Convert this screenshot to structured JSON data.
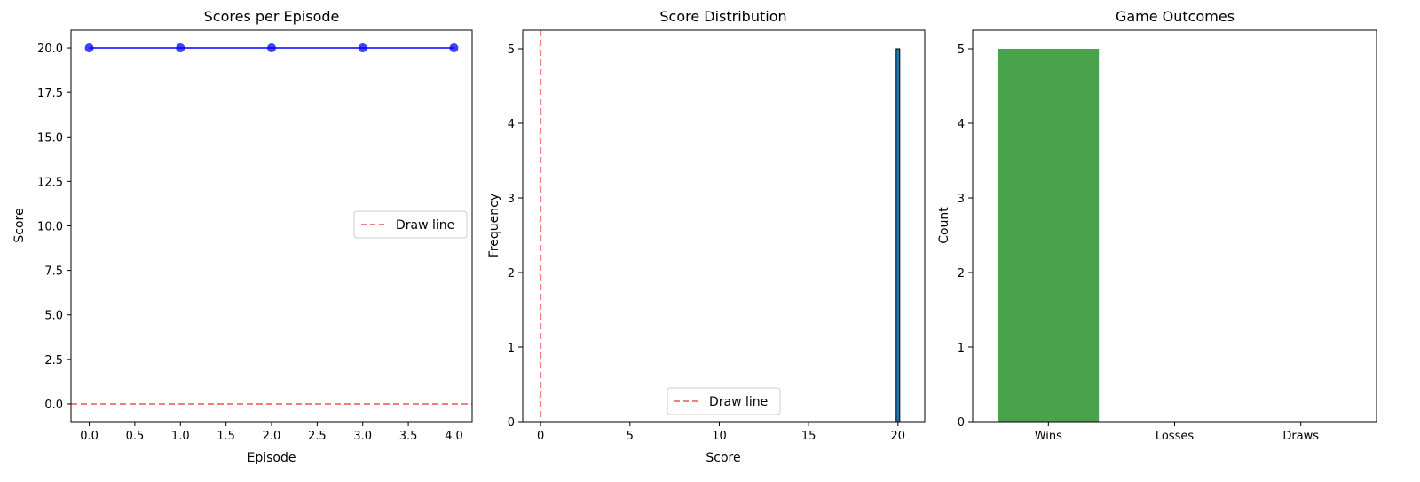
{
  "chart_data": [
    {
      "type": "line",
      "title": "Scores per Episode",
      "xlabel": "Episode",
      "ylabel": "Score",
      "x": [
        0,
        1,
        2,
        3,
        4
      ],
      "series": [
        {
          "values": [
            20,
            20,
            20,
            20,
            20
          ],
          "color": "#0000ff"
        }
      ],
      "xlim": [
        -0.2,
        4.2
      ],
      "ylim": [
        -1,
        21
      ],
      "xticks": [
        0,
        0.5,
        1,
        1.5,
        2,
        2.5,
        3,
        3.5,
        4
      ],
      "xticklabels": [
        "0.0",
        "0.5",
        "1.0",
        "1.5",
        "2.0",
        "2.5",
        "3.0",
        "3.5",
        "4.0"
      ],
      "yticks": [
        0,
        2.5,
        5,
        7.5,
        10,
        12.5,
        15,
        17.5,
        20
      ],
      "yticklabels": [
        "0.0",
        "2.5",
        "5.0",
        "7.5",
        "10.0",
        "12.5",
        "15.0",
        "17.5",
        "20.0"
      ],
      "hline": {
        "y": 0,
        "label": "Draw line",
        "color": "#f08080"
      },
      "legend": "center-right",
      "grid": false
    },
    {
      "type": "bar",
      "title": "Score Distribution",
      "xlabel": "Score",
      "ylabel": "Frequency",
      "bins": [
        {
          "start": 19.9,
          "end": 20.1,
          "count": 5
        }
      ],
      "bar_color": "#1f77b4",
      "xlim": [
        -1,
        21.5
      ],
      "ylim": [
        0,
        5.25
      ],
      "xticks": [
        0,
        5,
        10,
        15,
        20
      ],
      "xticklabels": [
        "0",
        "5",
        "10",
        "15",
        "20"
      ],
      "yticks": [
        0,
        1,
        2,
        3,
        4,
        5
      ],
      "yticklabels": [
        "0",
        "1",
        "2",
        "3",
        "4",
        "5"
      ],
      "vline": {
        "x": 0,
        "label": "Draw line",
        "color": "#f08080"
      },
      "legend": "bottom-center",
      "grid": false
    },
    {
      "type": "bar",
      "title": "Game Outcomes",
      "xlabel": "",
      "ylabel": "Count",
      "categories": [
        "Wins",
        "Losses",
        "Draws"
      ],
      "values": [
        5,
        0,
        0
      ],
      "colors": [
        "#4aa34a",
        "#e06666",
        "#9e9e9e"
      ],
      "ylim": [
        0,
        5.25
      ],
      "yticks": [
        0,
        1,
        2,
        3,
        4,
        5
      ],
      "yticklabels": [
        "0",
        "1",
        "2",
        "3",
        "4",
        "5"
      ],
      "grid": false
    }
  ]
}
